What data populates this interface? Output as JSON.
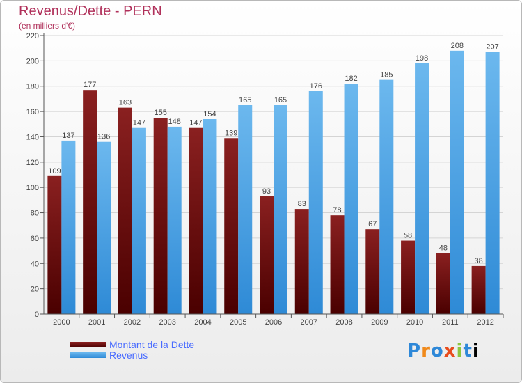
{
  "colors": {
    "title": "#b0305a",
    "debt_top": "#8a2020",
    "debt_bottom": "#4a0000",
    "revenue_top": "#6cb8ee",
    "revenue_bottom": "#2e8ad6",
    "legend_text": "#4a6cff"
  },
  "chart_data": {
    "type": "bar",
    "title": "Revenus/Dette - PERN",
    "subtitle": "(en milliers d'€)",
    "categories": [
      "2000",
      "2001",
      "2002",
      "2003",
      "2004",
      "2005",
      "2006",
      "2007",
      "2008",
      "2009",
      "2010",
      "2011",
      "2012"
    ],
    "series": [
      {
        "name": "Montant de la Dette",
        "values": [
          109,
          177,
          163,
          155,
          147,
          139,
          93,
          83,
          78,
          67,
          58,
          48,
          38
        ]
      },
      {
        "name": "Revenus",
        "values": [
          137,
          136,
          147,
          148,
          154,
          165,
          165,
          176,
          182,
          185,
          198,
          208,
          207
        ]
      }
    ],
    "ylim": [
      0,
      220
    ],
    "yticks": [
      0,
      20,
      40,
      60,
      80,
      100,
      120,
      140,
      160,
      180,
      200,
      220
    ],
    "grid": true,
    "legend_position": "bottom-left"
  },
  "logo": {
    "letters": [
      "P",
      "r",
      "o",
      "x",
      "i",
      "t",
      "i"
    ]
  }
}
